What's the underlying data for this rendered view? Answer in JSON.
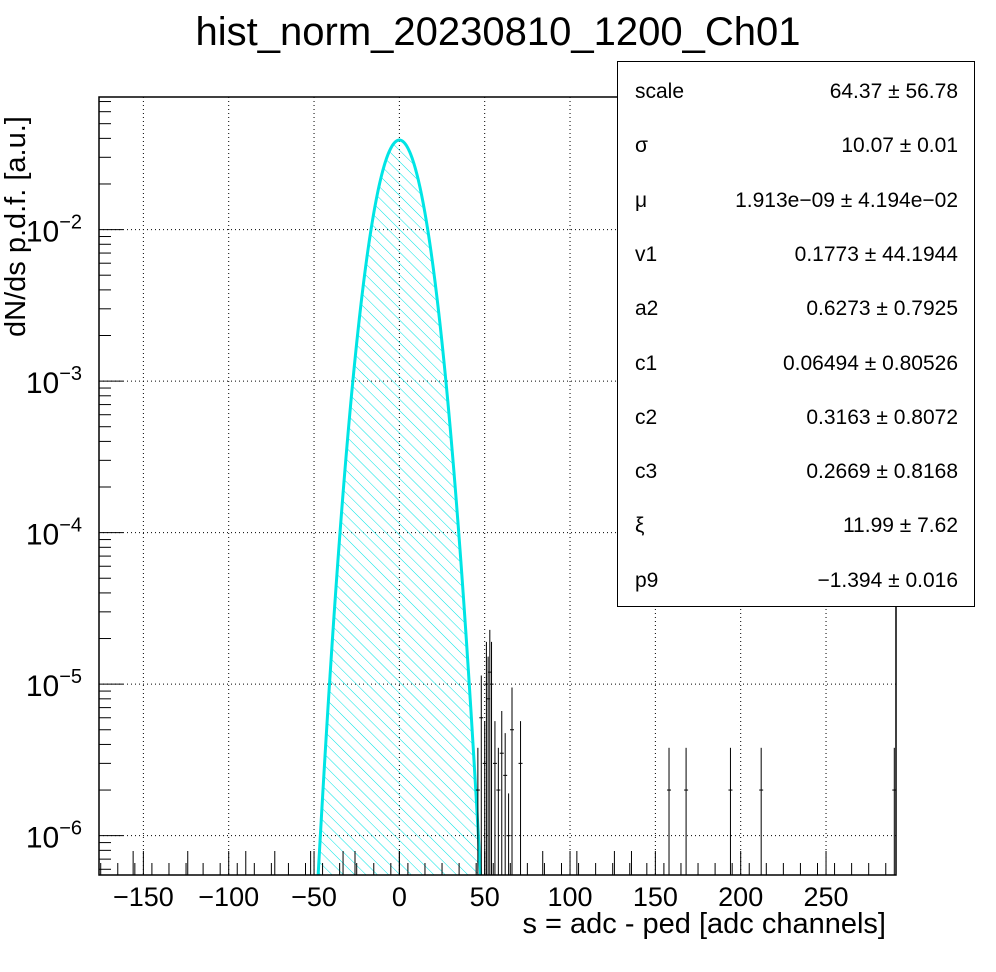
{
  "chart_data": {
    "type": "area",
    "title": "hist_norm_20230810_1200_Ch01",
    "xlabel": "s = adc - ped [adc channels]",
    "ylabel": "dN/ds p.d.f. [a.u.]",
    "xlim": [
      -176,
      291
    ],
    "ylim": [
      5.5e-07,
      0.075
    ],
    "y_scale": "log",
    "grid": true,
    "x_ticks": [
      "−150",
      "−100",
      "−50",
      "0",
      "50",
      "100",
      "150",
      "200",
      "250"
    ],
    "x_tick_values": [
      -150,
      -100,
      -50,
      0,
      50,
      100,
      150,
      200,
      250
    ],
    "y_ticks": [
      {
        "base": "10",
        "exp": "−6",
        "value": 1e-06
      },
      {
        "base": "10",
        "exp": "−5",
        "value": 1e-05
      },
      {
        "base": "10",
        "exp": "−4",
        "value": 0.0001
      },
      {
        "base": "10",
        "exp": "−3",
        "value": 0.001
      },
      {
        "base": "10",
        "exp": "−2",
        "value": 0.01
      }
    ],
    "fit": {
      "mu": 0,
      "sigma": 10.07,
      "peak": 0.039
    },
    "fit_color": "#00e5e5",
    "tail_points": [
      {
        "x": 46,
        "y": 2e-06
      },
      {
        "x": 48,
        "y": 6e-06
      },
      {
        "x": 50,
        "y": 3e-06
      },
      {
        "x": 51,
        "y": 1e-05
      },
      {
        "x": 52,
        "y": 8e-06
      },
      {
        "x": 53,
        "y": 1.2e-05
      },
      {
        "x": 54,
        "y": 1e-05
      },
      {
        "x": 56,
        "y": 3e-06
      },
      {
        "x": 58,
        "y": 2e-06
      },
      {
        "x": 60,
        "y": 3.5e-06
      },
      {
        "x": 62,
        "y": 2.5e-06
      },
      {
        "x": 64,
        "y": 1e-06
      },
      {
        "x": 66,
        "y": 5e-06
      },
      {
        "x": 71,
        "y": 3e-06
      },
      {
        "x": 158,
        "y": 2e-06
      },
      {
        "x": 168,
        "y": 2e-06
      },
      {
        "x": 194,
        "y": 2e-06
      },
      {
        "x": 212,
        "y": 2e-06
      },
      {
        "x": 290,
        "y": 2e-06
      }
    ],
    "bg_points": [
      -156,
      -124,
      -90,
      -73,
      -52,
      -33,
      -26,
      0,
      84,
      104,
      126,
      136
    ]
  },
  "stats_box": [
    {
      "name": "scale",
      "value": "64.37 ± 56.78"
    },
    {
      "name": "σ",
      "value": "10.07 ± 0.01"
    },
    {
      "name": "μ",
      "value": "1.913e−09 ± 4.194e−02"
    },
    {
      "name": "v1",
      "value": "0.1773 ± 44.1944"
    },
    {
      "name": "a2",
      "value": "0.6273 ± 0.7925"
    },
    {
      "name": "c1",
      "value": "0.06494 ± 0.80526"
    },
    {
      "name": "c2",
      "value": "0.3163 ± 0.8072"
    },
    {
      "name": "c3",
      "value": "0.2669 ± 0.8168"
    },
    {
      "name": "ξ",
      "value": "11.99 ± 7.62"
    },
    {
      "name": "p9",
      "value": "−1.394 ± 0.016"
    }
  ]
}
